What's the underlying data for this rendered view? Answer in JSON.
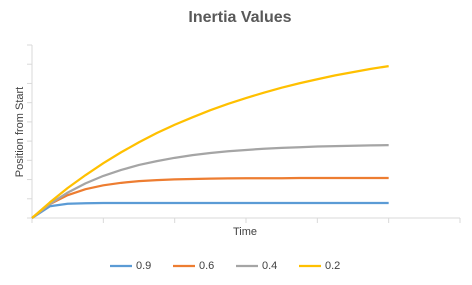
{
  "chart_data": {
    "type": "line",
    "title": "Inertia Values",
    "x_label": "Time",
    "y_label": "Position from Start",
    "x": [
      0,
      0.25,
      0.5,
      0.75,
      1,
      1.25,
      1.5,
      1.75,
      2,
      2.25,
      2.5,
      2.75,
      3,
      3.25,
      3.5,
      3.75,
      4,
      4.25,
      4.5,
      4.75,
      5
    ],
    "series": [
      {
        "name": "0.9",
        "color": "#5b9bd5",
        "values": [
          0,
          0.61,
          0.74,
          0.77,
          0.78,
          0.78,
          0.78,
          0.78,
          0.78,
          0.78,
          0.78,
          0.78,
          0.78,
          0.78,
          0.78,
          0.78,
          0.78,
          0.78,
          0.78,
          0.78,
          0.78
        ]
      },
      {
        "name": "0.6",
        "color": "#ed7d31",
        "values": [
          0,
          0.72,
          1.19,
          1.5,
          1.7,
          1.83,
          1.92,
          1.97,
          2.01,
          2.03,
          2.05,
          2.06,
          2.07,
          2.07,
          2.07,
          2.08,
          2.08,
          2.08,
          2.08,
          2.08,
          2.08
        ]
      },
      {
        "name": "0.4",
        "color": "#a5a5a5",
        "values": [
          0,
          0.73,
          1.32,
          1.8,
          2.19,
          2.5,
          2.76,
          2.96,
          3.13,
          3.27,
          3.38,
          3.47,
          3.54,
          3.6,
          3.65,
          3.68,
          3.72,
          3.74,
          3.76,
          3.78,
          3.79
        ]
      },
      {
        "name": "0.2",
        "color": "#ffc000",
        "values": [
          0,
          0.81,
          1.56,
          2.23,
          2.85,
          3.42,
          3.94,
          4.42,
          4.85,
          5.24,
          5.61,
          5.94,
          6.24,
          6.52,
          6.78,
          7.01,
          7.22,
          7.42,
          7.59,
          7.76,
          7.9
        ]
      }
    ],
    "xlim": [
      0,
      6
    ],
    "xticks": [
      0,
      1,
      2,
      3,
      4,
      5,
      6
    ],
    "ylim": [
      0,
      9
    ],
    "yticks": [
      0,
      1,
      2,
      3,
      4,
      5,
      6,
      7,
      8,
      9
    ],
    "tick_labels": false,
    "grid": false,
    "legend": "bottom"
  }
}
